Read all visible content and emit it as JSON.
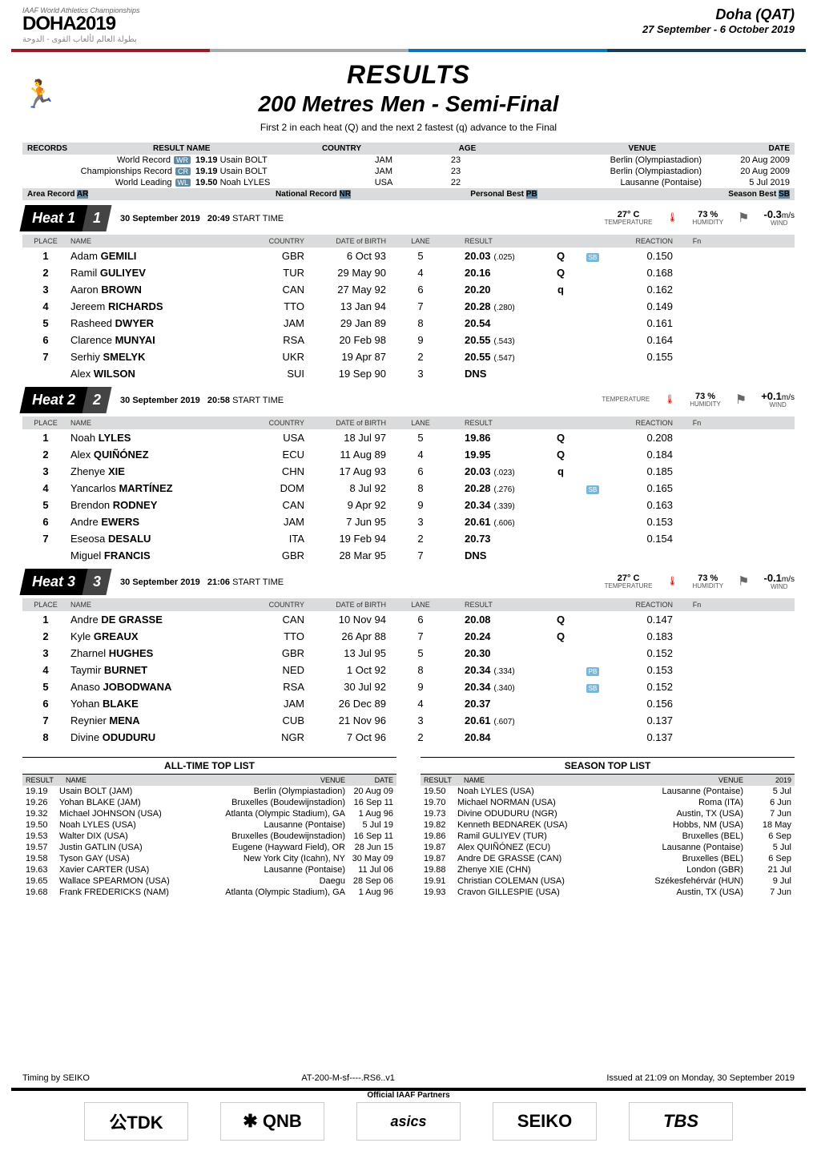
{
  "colors": {
    "header_grey": "#d9dbdc",
    "badge_blue": "#5f8aa8",
    "sb_blue": "#7ab6d9",
    "text": "#000000",
    "bg": "#ffffff",
    "rule_colors": [
      "#9a1a2a",
      "#aaaaaa",
      "#1173b6",
      "#1a3a5a"
    ]
  },
  "header": {
    "iaaf": "IAAF World Athletics Championships",
    "doha": "DOHA2019",
    "arabic": "بطولة العالم لألعاب القوى - الدوحة",
    "city": "Doha (QAT)",
    "dates": "27 September - 6 October 2019"
  },
  "title": {
    "results": "RESULTS",
    "event": "200 Metres Men - Semi-Final",
    "sub": "First 2 in each heat (Q) and the next 2 fastest (q) advance to the Final"
  },
  "rec_headers": [
    "RECORDS",
    "RESULT  NAME",
    "COUNTRY",
    "AGE",
    "VENUE",
    "DATE"
  ],
  "records": [
    {
      "label": "World Record",
      "badge": "WR",
      "result": "19.19",
      "name": "Usain BOLT",
      "ctry": "JAM",
      "age": "23",
      "venue": "Berlin (Olympiastadion)",
      "date": "20 Aug 2009"
    },
    {
      "label": "Championships Record",
      "badge": "CR",
      "result": "19.19",
      "name": "Usain BOLT",
      "ctry": "JAM",
      "age": "23",
      "venue": "Berlin (Olympiastadion)",
      "date": "20 Aug 2009"
    },
    {
      "label": "World Leading",
      "badge": "WL",
      "result": "19.50",
      "name": "Noah LYLES",
      "ctry": "USA",
      "age": "22",
      "venue": "Lausanne (Pontaise)",
      "date": "5 Jul 2019"
    }
  ],
  "rec_row2": {
    "area": "Area Record",
    "ar": "AR",
    "nat": "National Record",
    "nr": "NR",
    "pb": "Personal Best",
    "pbb": "PB",
    "sb": "Season Best",
    "sbb": "SB"
  },
  "heats": [
    {
      "n": "1",
      "date": "30 September  2019",
      "time": "20:49",
      "temp": "27° C",
      "hum": "73 %",
      "wind": "-0.3",
      "rows": [
        {
          "p": "1",
          "fn": "Adam",
          "ln": "GEMILI",
          "c": "GBR",
          "d": "6 Oct 93",
          "l": "5",
          "r": "20.03",
          "t": "(.025)",
          "q": "Q",
          "sb": "SB",
          "rt": "0.150"
        },
        {
          "p": "2",
          "fn": "Ramil",
          "ln": "GULIYEV",
          "c": "TUR",
          "d": "29 May 90",
          "l": "4",
          "r": "20.16",
          "t": "",
          "q": "Q",
          "sb": "",
          "rt": "0.168"
        },
        {
          "p": "3",
          "fn": "Aaron",
          "ln": "BROWN",
          "c": "CAN",
          "d": "27 May 92",
          "l": "6",
          "r": "20.20",
          "t": "",
          "q": "q",
          "sb": "",
          "rt": "0.162"
        },
        {
          "p": "4",
          "fn": "Jereem",
          "ln": "RICHARDS",
          "c": "TTO",
          "d": "13 Jan 94",
          "l": "7",
          "r": "20.28",
          "t": "(.280)",
          "q": "",
          "sb": "",
          "rt": "0.149"
        },
        {
          "p": "5",
          "fn": "Rasheed",
          "ln": "DWYER",
          "c": "JAM",
          "d": "29 Jan 89",
          "l": "8",
          "r": "20.54",
          "t": "",
          "q": "",
          "sb": "",
          "rt": "0.161"
        },
        {
          "p": "6",
          "fn": "Clarence",
          "ln": "MUNYAI",
          "c": "RSA",
          "d": "20 Feb 98",
          "l": "9",
          "r": "20.55",
          "t": "(.543)",
          "q": "",
          "sb": "",
          "rt": "0.164"
        },
        {
          "p": "7",
          "fn": "Serhiy",
          "ln": "SMELYK",
          "c": "UKR",
          "d": "19 Apr 87",
          "l": "2",
          "r": "20.55",
          "t": "(.547)",
          "q": "",
          "sb": "",
          "rt": "0.155"
        },
        {
          "p": "",
          "fn": "Alex",
          "ln": "WILSON",
          "c": "SUI",
          "d": "19 Sep 90",
          "l": "3",
          "r": "DNS",
          "t": "",
          "q": "",
          "sb": "",
          "rt": ""
        }
      ]
    },
    {
      "n": "2",
      "date": "30 September  2019",
      "time": "20:58",
      "temp": "",
      "hum": "73 %",
      "wind": "+0.1",
      "rows": [
        {
          "p": "1",
          "fn": "Noah",
          "ln": "LYLES",
          "c": "USA",
          "d": "18 Jul 97",
          "l": "5",
          "r": "19.86",
          "t": "",
          "q": "Q",
          "sb": "",
          "rt": "0.208"
        },
        {
          "p": "2",
          "fn": "Alex",
          "ln": "QUIÑÓNEZ",
          "c": "ECU",
          "d": "11 Aug 89",
          "l": "4",
          "r": "19.95",
          "t": "",
          "q": "Q",
          "sb": "",
          "rt": "0.184"
        },
        {
          "p": "3",
          "fn": "Zhenye",
          "ln": "XIE",
          "c": "CHN",
          "d": "17 Aug 93",
          "l": "6",
          "r": "20.03",
          "t": "(.023)",
          "q": "q",
          "sb": "",
          "rt": "0.185"
        },
        {
          "p": "4",
          "fn": "Yancarlos",
          "ln": "MARTÍNEZ",
          "c": "DOM",
          "d": "8 Jul 92",
          "l": "8",
          "r": "20.28",
          "t": "(.276)",
          "q": "",
          "sb": "SB",
          "rt": "0.165"
        },
        {
          "p": "5",
          "fn": "Brendon",
          "ln": "RODNEY",
          "c": "CAN",
          "d": "9 Apr 92",
          "l": "9",
          "r": "20.34",
          "t": "(.339)",
          "q": "",
          "sb": "",
          "rt": "0.163"
        },
        {
          "p": "6",
          "fn": "Andre",
          "ln": "EWERS",
          "c": "JAM",
          "d": "7 Jun 95",
          "l": "3",
          "r": "20.61",
          "t": "(.606)",
          "q": "",
          "sb": "",
          "rt": "0.153"
        },
        {
          "p": "7",
          "fn": "Eseosa",
          "ln": "DESALU",
          "c": "ITA",
          "d": "19 Feb 94",
          "l": "2",
          "r": "20.73",
          "t": "",
          "q": "",
          "sb": "",
          "rt": "0.154"
        },
        {
          "p": "",
          "fn": "Miguel",
          "ln": "FRANCIS",
          "c": "GBR",
          "d": "28 Mar 95",
          "l": "7",
          "r": "DNS",
          "t": "",
          "q": "",
          "sb": "",
          "rt": ""
        }
      ]
    },
    {
      "n": "3",
      "date": "30 September  2019",
      "time": "21:06",
      "temp": "27° C",
      "hum": "73 %",
      "wind": "-0.1",
      "rows": [
        {
          "p": "1",
          "fn": "Andre",
          "ln": "DE GRASSE",
          "c": "CAN",
          "d": "10 Nov 94",
          "l": "6",
          "r": "20.08",
          "t": "",
          "q": "Q",
          "sb": "",
          "rt": "0.147"
        },
        {
          "p": "2",
          "fn": "Kyle",
          "ln": "GREAUX",
          "c": "TTO",
          "d": "26 Apr 88",
          "l": "7",
          "r": "20.24",
          "t": "",
          "q": "Q",
          "sb": "",
          "rt": "0.183"
        },
        {
          "p": "3",
          "fn": "Zharnel",
          "ln": "HUGHES",
          "c": "GBR",
          "d": "13 Jul 95",
          "l": "5",
          "r": "20.30",
          "t": "",
          "q": "",
          "sb": "",
          "rt": "0.152"
        },
        {
          "p": "4",
          "fn": "Taymir",
          "ln": "BURNET",
          "c": "NED",
          "d": "1 Oct 92",
          "l": "8",
          "r": "20.34",
          "t": "(.334)",
          "q": "",
          "sb": "PB",
          "rt": "0.153"
        },
        {
          "p": "5",
          "fn": "Anaso",
          "ln": "JOBODWANA",
          "c": "RSA",
          "d": "30 Jul 92",
          "l": "9",
          "r": "20.34",
          "t": "(.340)",
          "q": "",
          "sb": "SB",
          "rt": "0.152"
        },
        {
          "p": "6",
          "fn": "Yohan",
          "ln": "BLAKE",
          "c": "JAM",
          "d": "26 Dec 89",
          "l": "4",
          "r": "20.37",
          "t": "",
          "q": "",
          "sb": "",
          "rt": "0.156"
        },
        {
          "p": "7",
          "fn": "Reynier",
          "ln": "MENA",
          "c": "CUB",
          "d": "21 Nov 96",
          "l": "3",
          "r": "20.61",
          "t": "(.607)",
          "q": "",
          "sb": "",
          "rt": "0.137"
        },
        {
          "p": "8",
          "fn": "Divine",
          "ln": "ODUDURU",
          "c": "NGR",
          "d": "7 Oct 96",
          "l": "2",
          "r": "20.84",
          "t": "",
          "q": "",
          "sb": "",
          "rt": "0.137"
        }
      ]
    }
  ],
  "tbl_hdr": {
    "place": "PLACE",
    "name": "NAME",
    "ctry": "COUNTRY",
    "dob": "DATE of BIRTH",
    "lane": "LANE",
    "res": "RESULT",
    "rt": "REACTION",
    "fn": "Fn"
  },
  "atl": {
    "left": {
      "title": "ALL-TIME TOP LIST",
      "hdr": [
        "RESULT",
        "NAME",
        "VENUE",
        "DATE"
      ],
      "rows": [
        [
          "19.19",
          "Usain BOLT (JAM)",
          "Berlin (Olympiastadion)",
          "20 Aug 09"
        ],
        [
          "19.26",
          "Yohan BLAKE (JAM)",
          "Bruxelles (Boudewijnstadion)",
          "16 Sep 11"
        ],
        [
          "19.32",
          "Michael JOHNSON (USA)",
          "Atlanta (Olympic Stadium), GA",
          "1 Aug 96"
        ],
        [
          "19.50",
          "Noah LYLES (USA)",
          "Lausanne (Pontaise)",
          "5 Jul 19"
        ],
        [
          "19.53",
          "Walter DIX (USA)",
          "Bruxelles (Boudewijnstadion)",
          "16 Sep 11"
        ],
        [
          "19.57",
          "Justin GATLIN (USA)",
          "Eugene (Hayward Field), OR",
          "28 Jun 15"
        ],
        [
          "19.58",
          "Tyson GAY (USA)",
          "New York City (Icahn), NY",
          "30 May 09"
        ],
        [
          "19.63",
          "Xavier CARTER (USA)",
          "Lausanne (Pontaise)",
          "11 Jul 06"
        ],
        [
          "19.65",
          "Wallace SPEARMON (USA)",
          "Daegu",
          "28 Sep 06"
        ],
        [
          "19.68",
          "Frank FREDERICKS (NAM)",
          "Atlanta (Olympic Stadium), GA",
          "1 Aug 96"
        ]
      ]
    },
    "right": {
      "title": "SEASON TOP LIST",
      "hdr": [
        "RESULT",
        "NAME",
        "VENUE",
        "2019"
      ],
      "rows": [
        [
          "19.50",
          "Noah LYLES (USA)",
          "Lausanne (Pontaise)",
          "5 Jul"
        ],
        [
          "19.70",
          "Michael NORMAN (USA)",
          "Roma (ITA)",
          "6 Jun"
        ],
        [
          "19.73",
          "Divine ODUDURU (NGR)",
          "Austin, TX (USA)",
          "7 Jun"
        ],
        [
          "19.82",
          "Kenneth BEDNAREK (USA)",
          "Hobbs, NM (USA)",
          "18 May"
        ],
        [
          "19.86",
          "Ramil GULIYEV (TUR)",
          "Bruxelles (BEL)",
          "6 Sep"
        ],
        [
          "19.87",
          "Alex QUIÑÓNEZ (ECU)",
          "Lausanne (Pontaise)",
          "5 Jul"
        ],
        [
          "19.87",
          "Andre DE GRASSE (CAN)",
          "Bruxelles (BEL)",
          "6 Sep"
        ],
        [
          "19.88",
          "Zhenye XIE (CHN)",
          "London (GBR)",
          "21 Jul"
        ],
        [
          "19.91",
          "Christian COLEMAN (USA)",
          "Székesfehérvár (HUN)",
          "9 Jul"
        ],
        [
          "19.93",
          "Cravon GILLESPIE (USA)",
          "Austin, TX (USA)",
          "7 Jun"
        ]
      ]
    }
  },
  "footer": {
    "left": "Timing by SEIKO",
    "mid": "AT-200-M-sf----.RS6..v1",
    "right": "Issued at 21:09 on Monday, 30 September  2019",
    "off": "Official IAAF Partners",
    "sponsors": [
      "公TDK",
      "✱ QNB",
      "asics",
      "SEIKO",
      "TBS"
    ]
  },
  "labels": {
    "heat": "Heat",
    "start": "START TIME",
    "temp": "TEMPERATURE",
    "hum": "HUMIDITY",
    "wind": "WIND",
    "ms": "m/s"
  }
}
